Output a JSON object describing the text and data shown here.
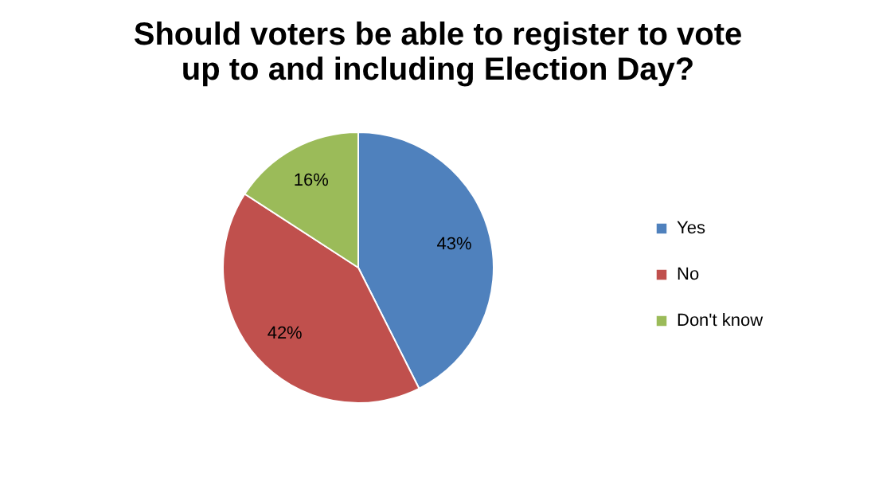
{
  "chart_data": {
    "type": "pie",
    "title": "Should voters be able to register to vote\nup to and including Election Day?",
    "categories": [
      "Yes",
      "No",
      "Don't know"
    ],
    "values": [
      43,
      42,
      16
    ],
    "colors": [
      "#4f81bd",
      "#c0504d",
      "#9bbb59"
    ],
    "value_labels": [
      "43%",
      "42%",
      "16%"
    ],
    "legend": "right"
  }
}
